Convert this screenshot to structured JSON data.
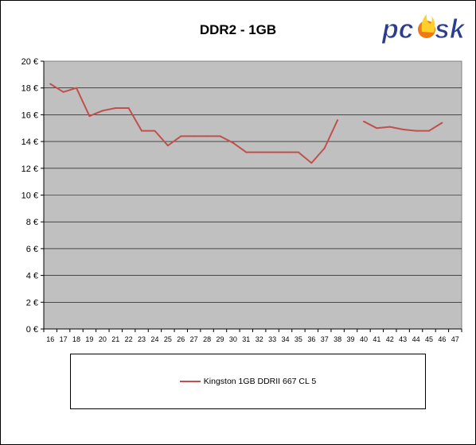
{
  "chart_data": {
    "type": "line",
    "title": "DDR2 - 1GB",
    "xlabel": "",
    "ylabel": "",
    "x": [
      16,
      17,
      18,
      19,
      20,
      21,
      22,
      23,
      24,
      25,
      26,
      27,
      28,
      29,
      30,
      31,
      32,
      33,
      34,
      35,
      36,
      37,
      38,
      39,
      40,
      41,
      42,
      43,
      44,
      45,
      46,
      47
    ],
    "ylim": [
      0,
      20
    ],
    "yticks": [
      "0 €",
      "2 €",
      "4 €",
      "6 €",
      "8 €",
      "10 €",
      "12 €",
      "14 €",
      "16 €",
      "18 €",
      "20 €"
    ],
    "series": [
      {
        "name": "Kingston 1GB DDRII 667 CL 5",
        "color": "#c0504d",
        "values": [
          18.3,
          17.7,
          18.0,
          15.9,
          16.3,
          16.5,
          16.5,
          14.8,
          14.8,
          13.7,
          14.4,
          14.4,
          14.4,
          14.4,
          13.9,
          13.2,
          13.2,
          13.2,
          13.2,
          13.2,
          12.4,
          13.5,
          15.6,
          null,
          15.5,
          15.0,
          15.1,
          14.9,
          14.8,
          14.8,
          15.4,
          null
        ]
      }
    ],
    "plot_background": "#c0c0c0",
    "grid": true,
    "legend_position": "bottom"
  },
  "logo": {
    "text": "pcosk"
  }
}
